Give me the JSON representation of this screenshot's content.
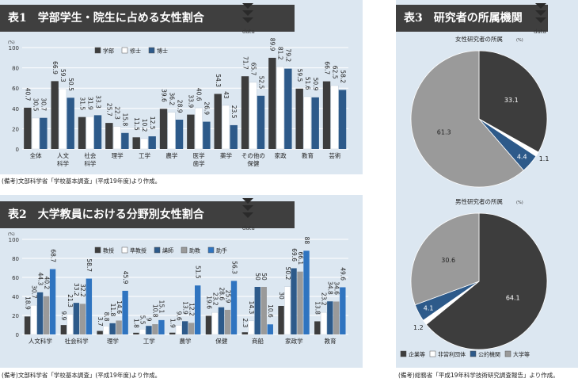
{
  "chart_data": [
    {
      "type": "bar",
      "title": "表1　学部学生・院生に占める女性割合",
      "unit": "(%)",
      "data_label": "data",
      "note": "(備考)文部科学省「学校基本調査」(平成19年度)より作成。",
      "ylim": [
        0,
        100
      ],
      "yticks": [
        0,
        20,
        40,
        60,
        80,
        100
      ],
      "categories": [
        "全体",
        "人文\n科学",
        "社会\n科学",
        "理学",
        "工学",
        "農学",
        "医学\n歯学",
        "薬学",
        "その他の\n保健",
        "家政",
        "教育",
        "芸術"
      ],
      "series": [
        {
          "name": "学部",
          "color": "#3d3d3d",
          "values": [
            40.7,
            66.9,
            31.5,
            25.7,
            11.5,
            39.6,
            33.9,
            54.3,
            71.7,
            89.9,
            59.5,
            66.7
          ]
        },
        {
          "name": "修士",
          "color": "#ffffff",
          "values": [
            30.5,
            59.3,
            31.9,
            22.3,
            10.2,
            36.2,
            40.6,
            43.0,
            65.7,
            81.2,
            51.6,
            62.5
          ]
        },
        {
          "name": "博士",
          "color": "#2d5a8a",
          "values": [
            30.7,
            50.5,
            33.3,
            15.8,
            12.5,
            28.9,
            26.9,
            23.5,
            52.5,
            79.2,
            50.9,
            58.2
          ]
        }
      ]
    },
    {
      "type": "bar",
      "title": "表2　大学教員における分野別女性割合",
      "unit": "(%)",
      "data_label": "data",
      "note": "(備考)文部科学省「学校基本調査」(平成19年度)より作成。",
      "ylim": [
        0,
        100
      ],
      "yticks": [
        0,
        20,
        40,
        60,
        80,
        100
      ],
      "categories": [
        "人文科学",
        "社会科学",
        "理学",
        "工学",
        "農学",
        "保健",
        "商船",
        "家政学",
        "教育"
      ],
      "series": [
        {
          "name": "教授",
          "color": "#3d3d3d",
          "values": [
            18.9,
            9.9,
            3.7,
            1.8,
            1.9,
            19.6,
            2.3,
            30.0,
            13.8
          ]
        },
        {
          "name": "準教授",
          "color": "#ffffff",
          "values": [
            30.7,
            21.3,
            8.8,
            5.5,
            9.6,
            23.2,
            14.3,
            50.2,
            23.2
          ]
        },
        {
          "name": "講師",
          "color": "#2d5a8a",
          "values": [
            44.3,
            33.2,
            11.8,
            9.0,
            13.9,
            28.6,
            50.0,
            69.6,
            34.8
          ]
        },
        {
          "name": "助教",
          "color": "#9a9a9a",
          "values": [
            40.2,
            32.2,
            14.6,
            10.8,
            12.2,
            25.9,
            50.0,
            66.1,
            34.6
          ]
        },
        {
          "name": "助手",
          "color": "#2f74c0",
          "values": [
            68.7,
            58.7,
            45.9,
            15.1,
            51.5,
            56.3,
            10.6,
            88.0,
            49.6
          ]
        }
      ]
    },
    {
      "type": "pie",
      "title": "表3　研究者の所属機関",
      "data_label": "data",
      "note": "(備考)総務省「平成19年科学技術研究調査報告」より作成。",
      "legend": [
        "企業等",
        "非営利団体",
        "公的機関",
        "大学等"
      ],
      "colors": [
        "#3d3d3d",
        "#ffffff",
        "#2d5a8a",
        "#9a9a9a"
      ],
      "pies": [
        {
          "title": "女性研究者の所属",
          "unit": "(%)",
          "values": [
            33.1,
            1.1,
            4.4,
            61.3
          ],
          "labels": [
            "33.1",
            "1.1",
            "4.4",
            "61.3"
          ]
        },
        {
          "title": "男性研究者の所属",
          "unit": "(%)",
          "values": [
            64.1,
            1.2,
            4.1,
            30.6
          ],
          "labels": [
            "64.1",
            "1.2",
            "4.1",
            "30.6"
          ]
        }
      ]
    }
  ]
}
